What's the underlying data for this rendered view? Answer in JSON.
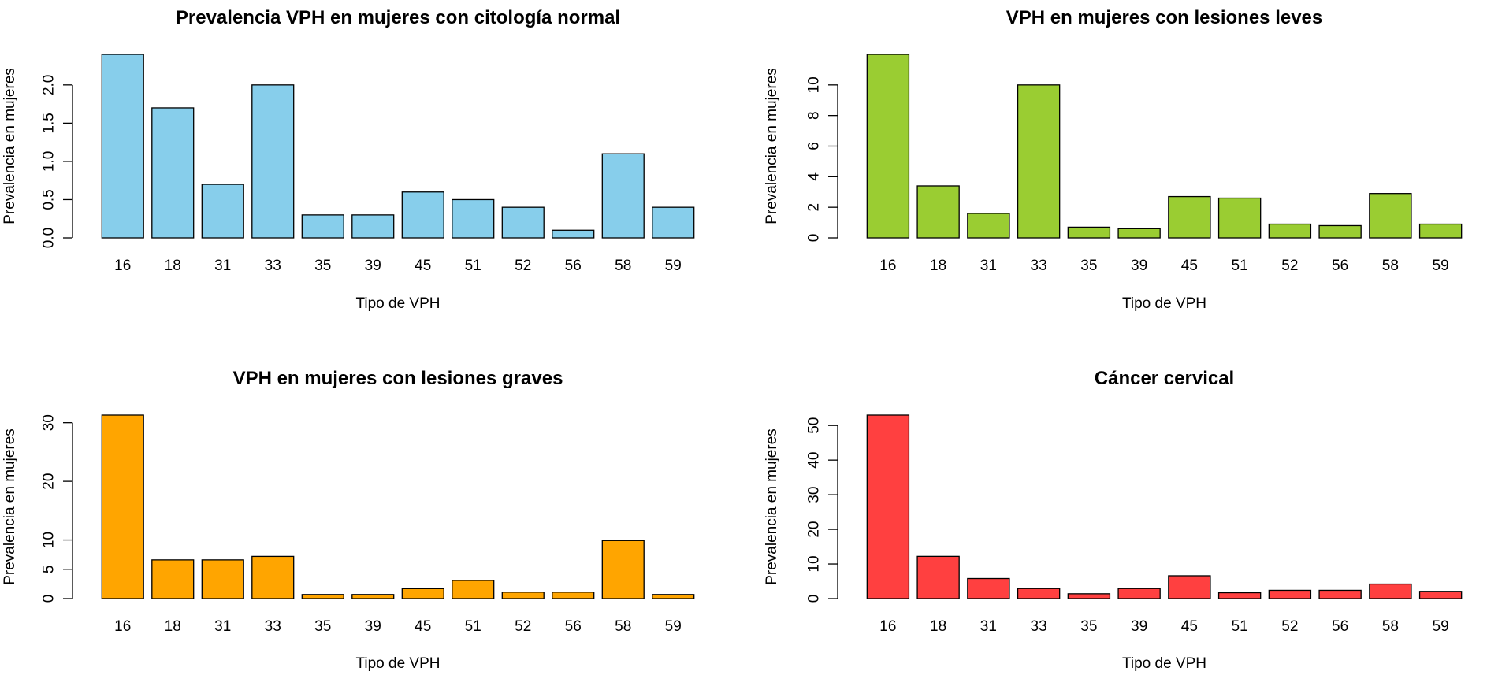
{
  "chart_data": [
    {
      "type": "bar",
      "title": "Prevalencia VPH en mujeres con citología normal",
      "xlabel": "Tipo de VPH",
      "ylabel": "Prevalencia en mujeres",
      "categories": [
        "16",
        "18",
        "31",
        "33",
        "35",
        "39",
        "45",
        "51",
        "52",
        "56",
        "58",
        "59"
      ],
      "values": [
        2.4,
        1.7,
        0.7,
        2.0,
        0.3,
        0.3,
        0.6,
        0.5,
        0.4,
        0.1,
        1.1,
        0.4
      ],
      "yticks": [
        "0.0",
        "0.5",
        "1.0",
        "1.5",
        "2.0"
      ],
      "ylim": [
        0,
        2.4
      ],
      "color": "#87CEEB"
    },
    {
      "type": "bar",
      "title": "VPH en mujeres con lesiones leves",
      "xlabel": "Tipo de VPH",
      "ylabel": "Prevalencia en mujeres",
      "categories": [
        "16",
        "18",
        "31",
        "33",
        "35",
        "39",
        "45",
        "51",
        "52",
        "56",
        "58",
        "59"
      ],
      "values": [
        12.0,
        3.4,
        1.6,
        10.0,
        0.7,
        0.6,
        2.7,
        2.6,
        0.9,
        0.8,
        2.9,
        0.9
      ],
      "yticks": [
        "0",
        "2",
        "4",
        "6",
        "8",
        "10"
      ],
      "ylim": [
        0,
        12
      ],
      "color": "#9ACD32"
    },
    {
      "type": "bar",
      "title": "VPH en mujeres con lesiones graves",
      "xlabel": "Tipo de VPH",
      "ylabel": "Prevalencia en mujeres",
      "categories": [
        "16",
        "18",
        "31",
        "33",
        "35",
        "39",
        "45",
        "51",
        "52",
        "56",
        "58",
        "59"
      ],
      "values": [
        31.3,
        6.6,
        6.6,
        7.2,
        0.7,
        0.7,
        1.7,
        3.1,
        1.1,
        1.1,
        9.9,
        0.7
      ],
      "yticks": [
        "0",
        "5",
        "10",
        "20",
        "30"
      ],
      "ylim": [
        0,
        31.3
      ],
      "color": "#FFA500"
    },
    {
      "type": "bar",
      "title": "Cáncer cervical",
      "xlabel": "Tipo de VPH",
      "ylabel": "Prevalencia en mujeres",
      "categories": [
        "16",
        "18",
        "31",
        "33",
        "35",
        "39",
        "45",
        "51",
        "52",
        "56",
        "58",
        "59"
      ],
      "values": [
        53.0,
        12.2,
        5.8,
        2.9,
        1.4,
        2.9,
        6.6,
        1.7,
        2.4,
        2.4,
        4.2,
        2.1
      ],
      "yticks": [
        "0",
        "10",
        "20",
        "30",
        "40",
        "50"
      ],
      "ylim": [
        0,
        53
      ],
      "color": "#FF4040"
    }
  ]
}
